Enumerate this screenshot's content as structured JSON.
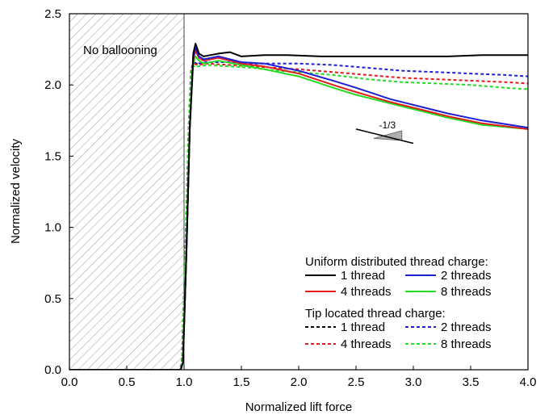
{
  "chart_data": {
    "type": "line",
    "xlabel": "Normalized lift force",
    "ylabel": "Normalized velocity",
    "xlim": [
      0.0,
      4.0
    ],
    "ylim": [
      0.0,
      2.5
    ],
    "x_ticks": [
      "0.0",
      "0.5",
      "1.0",
      "1.5",
      "2.0",
      "2.5",
      "3.0",
      "3.5",
      "4.0"
    ],
    "y_ticks": [
      "0.0",
      "0.5",
      "1.0",
      "1.5",
      "2.0",
      "2.5"
    ],
    "grid": false,
    "shaded_region": {
      "x_range": [
        0.0,
        1.0
      ],
      "label": "No ballooning",
      "pattern": "diagonal-hatch"
    },
    "slope_annotation": {
      "label": "-1/3",
      "x_range": [
        2.5,
        3.0
      ]
    },
    "legend": {
      "placement": "bottom-right",
      "group1_title": "Uniform distributed thread charge:",
      "group2_title": "Tip located thread charge:"
    },
    "series": [
      {
        "name": "1 thread",
        "group": "uniform",
        "color": "#000000",
        "dash": "solid",
        "x": [
          0,
          0.97,
          0.99,
          1.02,
          1.05,
          1.08,
          1.1,
          1.13,
          1.17,
          1.3,
          1.4,
          1.5,
          1.7,
          1.9,
          2.2,
          2.5,
          2.8,
          3.0,
          3.3,
          3.6,
          4.0
        ],
        "y": [
          0,
          0,
          0.05,
          0.8,
          1.7,
          2.22,
          2.29,
          2.22,
          2.2,
          2.22,
          2.23,
          2.2,
          2.21,
          2.21,
          2.2,
          2.2,
          2.2,
          2.2,
          2.2,
          2.21,
          2.21
        ]
      },
      {
        "name": "2 threads",
        "group": "uniform",
        "color": "#1f1fd6",
        "dash": "solid",
        "x": [
          0,
          0.97,
          0.99,
          1.02,
          1.05,
          1.08,
          1.1,
          1.13,
          1.17,
          1.3,
          1.5,
          1.7,
          2.0,
          2.3,
          2.5,
          2.8,
          3.0,
          3.3,
          3.6,
          4.0
        ],
        "y": [
          0,
          0,
          0.05,
          0.8,
          1.7,
          2.2,
          2.26,
          2.2,
          2.18,
          2.2,
          2.16,
          2.15,
          2.1,
          2.03,
          1.98,
          1.9,
          1.86,
          1.8,
          1.75,
          1.7
        ]
      },
      {
        "name": "4 threads",
        "group": "uniform",
        "color": "#e11d1d",
        "dash": "solid",
        "x": [
          0,
          0.97,
          0.99,
          1.02,
          1.05,
          1.08,
          1.1,
          1.13,
          1.17,
          1.3,
          1.5,
          1.7,
          2.0,
          2.3,
          2.5,
          2.8,
          3.0,
          3.3,
          3.6,
          4.0
        ],
        "y": [
          0,
          0,
          0.05,
          0.8,
          1.7,
          2.18,
          2.24,
          2.19,
          2.17,
          2.19,
          2.15,
          2.13,
          2.08,
          2.0,
          1.95,
          1.88,
          1.84,
          1.78,
          1.73,
          1.69
        ]
      },
      {
        "name": "8 threads",
        "group": "uniform",
        "color": "#22dd22",
        "dash": "solid",
        "x": [
          0,
          0.97,
          0.99,
          1.02,
          1.05,
          1.08,
          1.1,
          1.13,
          1.17,
          1.3,
          1.5,
          1.7,
          2.0,
          2.3,
          2.5,
          2.8,
          3.0,
          3.3,
          3.6,
          4.0
        ],
        "y": [
          0,
          0,
          0.05,
          0.8,
          1.7,
          2.15,
          2.2,
          2.17,
          2.15,
          2.17,
          2.14,
          2.11,
          2.06,
          1.98,
          1.93,
          1.87,
          1.83,
          1.77,
          1.72,
          1.69
        ]
      },
      {
        "name": "1 thread",
        "group": "tip",
        "color": "#000000",
        "dash": "dashed",
        "x": [
          0,
          0.96,
          0.98,
          1.01,
          1.04,
          1.06,
          1.08,
          1.12,
          1.2
        ],
        "y": [
          0,
          0,
          0.05,
          0.8,
          1.7,
          2.1,
          2.15,
          2.15,
          2.16
        ]
      },
      {
        "name": "2 threads",
        "group": "tip",
        "color": "#1f1fd6",
        "dash": "dashed",
        "x": [
          0,
          0.96,
          0.98,
          1.01,
          1.04,
          1.06,
          1.08,
          1.12,
          1.2,
          1.4,
          1.6,
          1.8,
          2.0,
          2.3,
          2.6,
          2.9,
          3.2,
          3.5,
          3.8,
          4.0
        ],
        "y": [
          0,
          0,
          0.05,
          0.8,
          1.7,
          2.1,
          2.16,
          2.15,
          2.16,
          2.16,
          2.15,
          2.15,
          2.15,
          2.14,
          2.12,
          2.1,
          2.09,
          2.08,
          2.07,
          2.06
        ]
      },
      {
        "name": "4 threads",
        "group": "tip",
        "color": "#e11d1d",
        "dash": "dashed",
        "x": [
          0,
          0.96,
          0.98,
          1.01,
          1.04,
          1.06,
          1.08,
          1.12,
          1.2,
          1.4,
          1.6,
          1.8,
          2.0,
          2.3,
          2.6,
          2.9,
          3.2,
          3.5,
          3.8,
          4.0
        ],
        "y": [
          0,
          0,
          0.05,
          0.8,
          1.7,
          2.1,
          2.15,
          2.14,
          2.15,
          2.14,
          2.13,
          2.12,
          2.11,
          2.09,
          2.07,
          2.05,
          2.04,
          2.03,
          2.02,
          2.01
        ]
      },
      {
        "name": "8 threads",
        "group": "tip",
        "color": "#22dd22",
        "dash": "dashed",
        "x": [
          0,
          0.96,
          0.98,
          1.01,
          1.04,
          1.06,
          1.08,
          1.12,
          1.2,
          1.4,
          1.6,
          1.8,
          2.0,
          2.3,
          2.6,
          2.9,
          3.2,
          3.5,
          3.8,
          4.0
        ],
        "y": [
          0,
          0,
          0.05,
          0.8,
          1.7,
          2.09,
          2.13,
          2.13,
          2.14,
          2.13,
          2.12,
          2.1,
          2.09,
          2.07,
          2.04,
          2.02,
          2.01,
          2.0,
          1.98,
          1.97
        ]
      }
    ]
  }
}
